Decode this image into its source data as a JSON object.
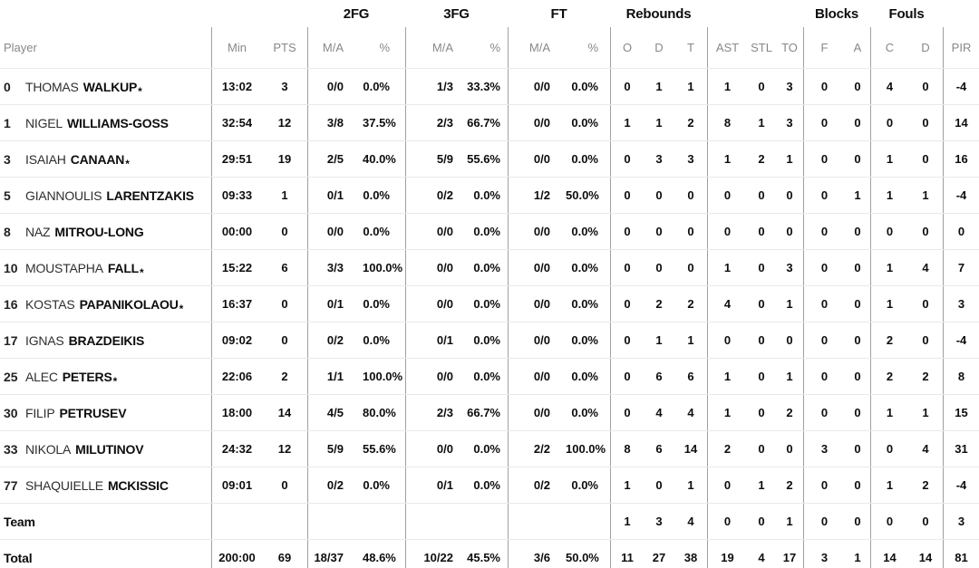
{
  "colors": {
    "background": "#ffffff",
    "ink": "#0d0d0d",
    "muted_header": "#85888c",
    "vertical_divider": "#a0a0a0",
    "horizontal_divider": "#e9e9e9"
  },
  "table": {
    "group_headers": {
      "fg2": "2FG",
      "fg3": "3FG",
      "ft": "FT",
      "rebounds": "Rebounds",
      "blocks": "Blocks",
      "fouls": "Fouls"
    },
    "column_headers": {
      "player": "Player",
      "min": "Min",
      "pts": "PTS",
      "ma": "M/A",
      "pct": "%",
      "reb_o": "O",
      "reb_d": "D",
      "reb_t": "T",
      "ast": "AST",
      "stl": "STL",
      "to": "TO",
      "blk_f": "F",
      "blk_a": "A",
      "foul_c": "C",
      "foul_d": "D",
      "pir": "PIR"
    },
    "starter_marker": "*",
    "rows": [
      {
        "type": "player",
        "num": "0",
        "first": "THOMAS",
        "last": "WALKUP",
        "star": "*",
        "min": "13:02",
        "pts": "3",
        "f2m": "0/0",
        "f2p": "0.0%",
        "f3m": "1/3",
        "f3p": "33.3%",
        "ftm": "0/0",
        "ftp": "0.0%",
        "ro": "0",
        "rd": "1",
        "rt": "1",
        "as": "1",
        "st": "0",
        "to": "3",
        "bf": "0",
        "ba": "0",
        "fc": "4",
        "fd": "0",
        "pir": "-4"
      },
      {
        "type": "player",
        "num": "1",
        "first": "NIGEL",
        "last": "WILLIAMS-GOSS",
        "star": "",
        "min": "32:54",
        "pts": "12",
        "f2m": "3/8",
        "f2p": "37.5%",
        "f3m": "2/3",
        "f3p": "66.7%",
        "ftm": "0/0",
        "ftp": "0.0%",
        "ro": "1",
        "rd": "1",
        "rt": "2",
        "as": "8",
        "st": "1",
        "to": "3",
        "bf": "0",
        "ba": "0",
        "fc": "0",
        "fd": "0",
        "pir": "14"
      },
      {
        "type": "player",
        "num": "3",
        "first": "ISAIAH",
        "last": "CANAAN",
        "star": "*",
        "min": "29:51",
        "pts": "19",
        "f2m": "2/5",
        "f2p": "40.0%",
        "f3m": "5/9",
        "f3p": "55.6%",
        "ftm": "0/0",
        "ftp": "0.0%",
        "ro": "0",
        "rd": "3",
        "rt": "3",
        "as": "1",
        "st": "2",
        "to": "1",
        "bf": "0",
        "ba": "0",
        "fc": "1",
        "fd": "0",
        "pir": "16"
      },
      {
        "type": "player",
        "num": "5",
        "first": "GIANNOULIS",
        "last": "LARENTZAKIS",
        "star": "",
        "min": "09:33",
        "pts": "1",
        "f2m": "0/1",
        "f2p": "0.0%",
        "f3m": "0/2",
        "f3p": "0.0%",
        "ftm": "1/2",
        "ftp": "50.0%",
        "ro": "0",
        "rd": "0",
        "rt": "0",
        "as": "0",
        "st": "0",
        "to": "0",
        "bf": "0",
        "ba": "1",
        "fc": "1",
        "fd": "1",
        "pir": "-4"
      },
      {
        "type": "player",
        "num": "8",
        "first": "NAZ",
        "last": "MITROU-LONG",
        "star": "",
        "min": "00:00",
        "pts": "0",
        "f2m": "0/0",
        "f2p": "0.0%",
        "f3m": "0/0",
        "f3p": "0.0%",
        "ftm": "0/0",
        "ftp": "0.0%",
        "ro": "0",
        "rd": "0",
        "rt": "0",
        "as": "0",
        "st": "0",
        "to": "0",
        "bf": "0",
        "ba": "0",
        "fc": "0",
        "fd": "0",
        "pir": "0"
      },
      {
        "type": "player",
        "num": "10",
        "first": "MOUSTAPHA",
        "last": "FALL",
        "star": "*",
        "min": "15:22",
        "pts": "6",
        "f2m": "3/3",
        "f2p": "100.0%",
        "f3m": "0/0",
        "f3p": "0.0%",
        "ftm": "0/0",
        "ftp": "0.0%",
        "ro": "0",
        "rd": "0",
        "rt": "0",
        "as": "1",
        "st": "0",
        "to": "3",
        "bf": "0",
        "ba": "0",
        "fc": "1",
        "fd": "4",
        "pir": "7"
      },
      {
        "type": "player",
        "num": "16",
        "first": "KOSTAS",
        "last": "PAPANIKOLAOU",
        "star": "*",
        "min": "16:37",
        "pts": "0",
        "f2m": "0/1",
        "f2p": "0.0%",
        "f3m": "0/0",
        "f3p": "0.0%",
        "ftm": "0/0",
        "ftp": "0.0%",
        "ro": "0",
        "rd": "2",
        "rt": "2",
        "as": "4",
        "st": "0",
        "to": "1",
        "bf": "0",
        "ba": "0",
        "fc": "1",
        "fd": "0",
        "pir": "3"
      },
      {
        "type": "player",
        "num": "17",
        "first": "IGNAS",
        "last": "BRAZDEIKIS",
        "star": "",
        "min": "09:02",
        "pts": "0",
        "f2m": "0/2",
        "f2p": "0.0%",
        "f3m": "0/1",
        "f3p": "0.0%",
        "ftm": "0/0",
        "ftp": "0.0%",
        "ro": "0",
        "rd": "1",
        "rt": "1",
        "as": "0",
        "st": "0",
        "to": "0",
        "bf": "0",
        "ba": "0",
        "fc": "2",
        "fd": "0",
        "pir": "-4"
      },
      {
        "type": "player",
        "num": "25",
        "first": "ALEC",
        "last": "PETERS",
        "star": "*",
        "min": "22:06",
        "pts": "2",
        "f2m": "1/1",
        "f2p": "100.0%",
        "f3m": "0/0",
        "f3p": "0.0%",
        "ftm": "0/0",
        "ftp": "0.0%",
        "ro": "0",
        "rd": "6",
        "rt": "6",
        "as": "1",
        "st": "0",
        "to": "1",
        "bf": "0",
        "ba": "0",
        "fc": "2",
        "fd": "2",
        "pir": "8"
      },
      {
        "type": "player",
        "num": "30",
        "first": "FILIP",
        "last": "PETRUSEV",
        "star": "",
        "min": "18:00",
        "pts": "14",
        "f2m": "4/5",
        "f2p": "80.0%",
        "f3m": "2/3",
        "f3p": "66.7%",
        "ftm": "0/0",
        "ftp": "0.0%",
        "ro": "0",
        "rd": "4",
        "rt": "4",
        "as": "1",
        "st": "0",
        "to": "2",
        "bf": "0",
        "ba": "0",
        "fc": "1",
        "fd": "1",
        "pir": "15"
      },
      {
        "type": "player",
        "num": "33",
        "first": "NIKOLA",
        "last": "MILUTINOV",
        "star": "",
        "min": "24:32",
        "pts": "12",
        "f2m": "5/9",
        "f2p": "55.6%",
        "f3m": "0/0",
        "f3p": "0.0%",
        "ftm": "2/2",
        "ftp": "100.0%",
        "ro": "8",
        "rd": "6",
        "rt": "14",
        "as": "2",
        "st": "0",
        "to": "0",
        "bf": "3",
        "ba": "0",
        "fc": "0",
        "fd": "4",
        "pir": "31"
      },
      {
        "type": "player",
        "num": "77",
        "first": "SHAQUIELLE",
        "last": "MCKISSIC",
        "star": "",
        "min": "09:01",
        "pts": "0",
        "f2m": "0/2",
        "f2p": "0.0%",
        "f3m": "0/1",
        "f3p": "0.0%",
        "ftm": "0/2",
        "ftp": "0.0%",
        "ro": "1",
        "rd": "0",
        "rt": "1",
        "as": "0",
        "st": "1",
        "to": "2",
        "bf": "0",
        "ba": "0",
        "fc": "1",
        "fd": "2",
        "pir": "-4"
      },
      {
        "type": "summary",
        "num": "",
        "first": "",
        "last": "Team",
        "star": "",
        "min": "",
        "pts": "",
        "f2m": "",
        "f2p": "",
        "f3m": "",
        "f3p": "",
        "ftm": "",
        "ftp": "",
        "ro": "1",
        "rd": "3",
        "rt": "4",
        "as": "0",
        "st": "0",
        "to": "1",
        "bf": "0",
        "ba": "0",
        "fc": "0",
        "fd": "0",
        "pir": "3"
      },
      {
        "type": "summary",
        "num": "",
        "first": "",
        "last": "Total",
        "star": "",
        "min": "200:00",
        "pts": "69",
        "f2m": "18/37",
        "f2p": "48.6%",
        "f3m": "10/22",
        "f3p": "45.5%",
        "ftm": "3/6",
        "ftp": "50.0%",
        "ro": "11",
        "rd": "27",
        "rt": "38",
        "as": "19",
        "st": "4",
        "to": "17",
        "bf": "3",
        "ba": "1",
        "fc": "14",
        "fd": "14",
        "pir": "81"
      }
    ]
  }
}
